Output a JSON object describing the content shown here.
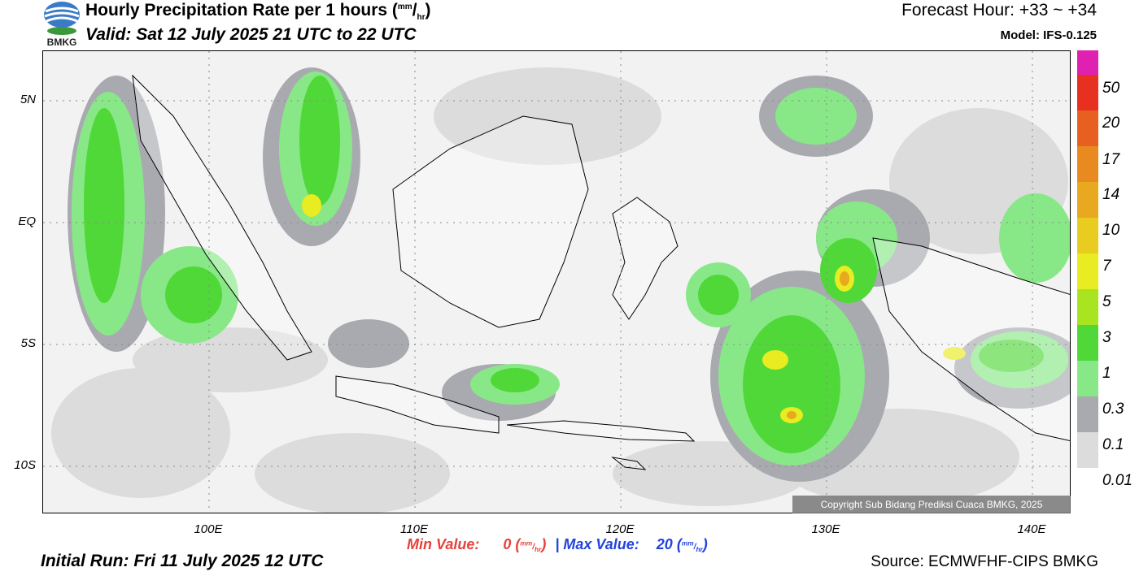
{
  "header": {
    "title_main": "Hourly Precipitation Rate per 1 hours (",
    "title_unit_top": "mm",
    "title_unit_slash": "/",
    "title_unit_bottom": "hr",
    "title_close": ")",
    "valid": "Valid: Sat 12 July 2025 21 UTC to 22 UTC",
    "forecast_hour": "Forecast Hour: +33 ~ +34",
    "model": "Model: IFS-0.125",
    "logo_text": "BMKG"
  },
  "map": {
    "lat_labels": [
      "5N",
      "EQ",
      "5S",
      "10S"
    ],
    "lon_labels": [
      "100E",
      "110E",
      "120E",
      "130E",
      "140E"
    ],
    "copyright": "Copyright Sub Bidang Prediksi Cuaca BMKG, 2025"
  },
  "colorbar": {
    "labels": [
      "50",
      "20",
      "17",
      "14",
      "10",
      "7",
      "5",
      "3",
      "1",
      "0.3",
      "0.1",
      "0.01"
    ],
    "colors": [
      "#e020b0",
      "#e83020",
      "#e86020",
      "#e88a20",
      "#e8a820",
      "#e8cc20",
      "#e8ec20",
      "#a8e420",
      "#50d838",
      "#88e888",
      "#a8aab0",
      "#dcdcdc"
    ]
  },
  "footer": {
    "min_label": "Min Value:",
    "min_value": "0",
    "separator": "|",
    "max_label": "Max Value:",
    "max_value": "20",
    "unit_top": "mm",
    "unit_bottom": "hr",
    "initial_run": "Initial Run: Fri 11 July 2025 12 UTC",
    "source": "Source: ECMWFHF-CIPS BMKG"
  }
}
